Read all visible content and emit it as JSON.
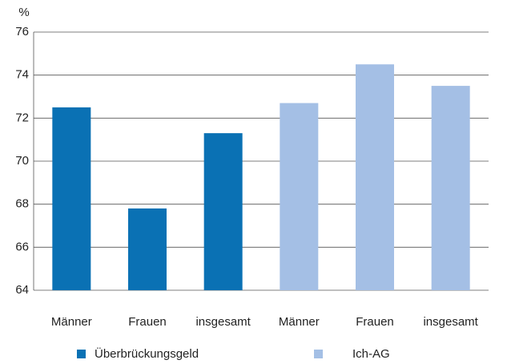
{
  "chart_data": {
    "type": "bar",
    "y_label": "%",
    "categories": [
      "Männer",
      "Frauen",
      "insgesamt",
      "Männer",
      "Frauen",
      "insgesamt"
    ],
    "series": [
      {
        "name": "Überbrückungsgeld",
        "color": "#0a71b4",
        "values": [
          72.5,
          67.8,
          71.3,
          null,
          null,
          null
        ]
      },
      {
        "name": "Ich-AG",
        "color": "#a4bfe5",
        "values": [
          null,
          null,
          null,
          72.7,
          74.5,
          73.5
        ]
      }
    ],
    "ylim": [
      64,
      76
    ],
    "yticks": [
      64,
      66,
      68,
      70,
      72,
      74,
      76
    ],
    "grid": true
  }
}
